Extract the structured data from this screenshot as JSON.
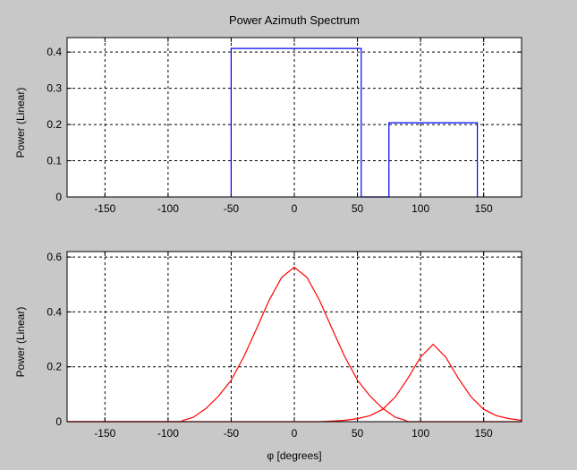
{
  "figure": {
    "background": "#c8c8c8"
  },
  "chart_data": [
    {
      "type": "line",
      "title": "Power Azimuth Spectrum",
      "xlabel": "",
      "ylabel": "Power (Linear)",
      "xlim": [
        -180,
        180
      ],
      "ylim": [
        0,
        0.44
      ],
      "xticks": [
        -150,
        -100,
        -50,
        0,
        50,
        100,
        150
      ],
      "xtick_labels": [
        "-150",
        "-100",
        "-50",
        "0",
        "50",
        "100",
        "150"
      ],
      "yticks": [
        0,
        0.1,
        0.2,
        0.3,
        0.4
      ],
      "ytick_labels": [
        "0",
        "0.1",
        "0.2",
        "0.3",
        "0.4"
      ],
      "grid": true,
      "series": [
        {
          "color": "#0000ff",
          "x": [
            -50,
            -50,
            53,
            53,
            75,
            75,
            145,
            145
          ],
          "y": [
            0,
            0.41,
            0.41,
            0,
            0,
            0.205,
            0.205,
            0
          ]
        }
      ]
    },
    {
      "type": "line",
      "title": "",
      "xlabel": "φ [degrees]",
      "ylabel": "Power (Linear)",
      "xlim": [
        -180,
        180
      ],
      "ylim": [
        0,
        0.62
      ],
      "xticks": [
        -150,
        -100,
        -50,
        0,
        50,
        100,
        150
      ],
      "xtick_labels": [
        "-150",
        "-100",
        "-50",
        "0",
        "50",
        "100",
        "150"
      ],
      "yticks": [
        0,
        0.2,
        0.4,
        0.6
      ],
      "ytick_labels": [
        "0",
        "0.2",
        "0.4",
        "0.6"
      ],
      "grid": true,
      "series": [
        {
          "color": "#ff0000",
          "x": [
            -180,
            -90,
            -88,
            -80,
            -70,
            -60,
            -50,
            -40,
            -30,
            -20,
            -10,
            0,
            10,
            20,
            30,
            40,
            50,
            60,
            70,
            80,
            88,
            90,
            180
          ],
          "y": [
            0,
            0,
            0.005,
            0.016,
            0.048,
            0.093,
            0.151,
            0.237,
            0.338,
            0.442,
            0.526,
            0.563,
            0.526,
            0.442,
            0.338,
            0.237,
            0.151,
            0.093,
            0.048,
            0.016,
            0.005,
            0,
            0
          ]
        },
        {
          "color": "#ff0000",
          "x": [
            -180,
            20,
            30,
            40,
            50,
            60,
            70,
            80,
            90,
            100,
            110,
            120,
            130,
            140,
            150,
            160,
            170,
            180
          ],
          "y": [
            0,
            0,
            0.002,
            0.005,
            0.011,
            0.022,
            0.045,
            0.09,
            0.158,
            0.235,
            0.282,
            0.235,
            0.158,
            0.09,
            0.045,
            0.022,
            0.011,
            0.005
          ]
        }
      ]
    }
  ]
}
